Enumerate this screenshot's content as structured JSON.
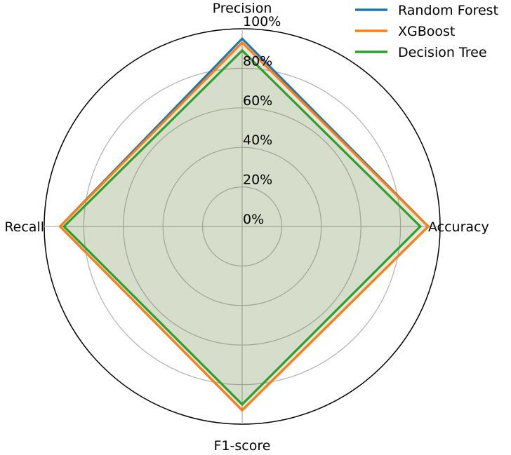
{
  "chart_data": {
    "type": "radar",
    "title": "",
    "axes": [
      "Accuracy",
      "Precision",
      "Recall",
      "F1-score"
    ],
    "radial_range": [
      0,
      100
    ],
    "radial_ticks": [
      0,
      20,
      40,
      60,
      80,
      100
    ],
    "radial_tick_labels": [
      "0%",
      "20%",
      "40%",
      "60%",
      "80%",
      "100%"
    ],
    "grid": true,
    "legend_position": "top-right",
    "series": [
      {
        "name": "Random Forest",
        "values": [
          94,
          95,
          92,
          93
        ],
        "color": "#1f77b4"
      },
      {
        "name": "XGBoost",
        "values": [
          94,
          93,
          92,
          93
        ],
        "color": "#ff7f0e"
      },
      {
        "name": "Decision Tree",
        "values": [
          90,
          89,
          90,
          90
        ],
        "color": "#2ca02c"
      }
    ]
  }
}
